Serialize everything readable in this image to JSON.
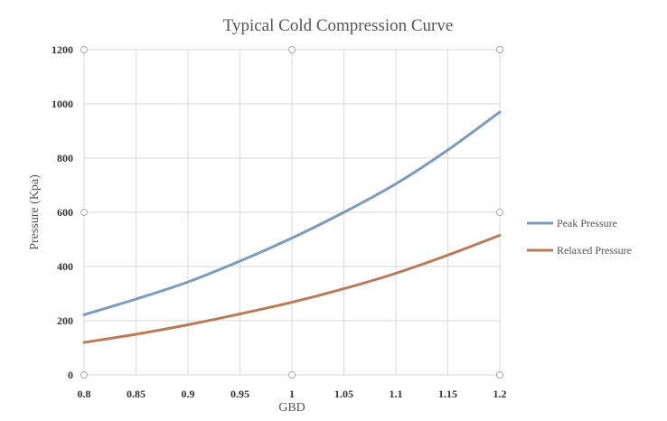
{
  "chart_data": {
    "type": "line",
    "title": "Typical Cold Compression Curve",
    "xlabel": "GBD",
    "ylabel": "Pressure (Kpa)",
    "xlim": [
      0.8,
      1.2
    ],
    "ylim": [
      0,
      1200
    ],
    "x_ticks": [
      "0.8",
      "0.85",
      "0.9",
      "0.95",
      "1",
      "1.05",
      "1.1",
      "1.15",
      "1.2"
    ],
    "y_ticks": [
      "0",
      "200",
      "400",
      "600",
      "800",
      "1000",
      "1200"
    ],
    "grid": true,
    "legend_position": "right",
    "x": [
      0.8,
      0.85,
      0.9,
      0.95,
      1.0,
      1.05,
      1.1,
      1.15,
      1.2
    ],
    "series": [
      {
        "name": "Peak Pressure",
        "color": "#7c9bbd",
        "values": [
          222,
          280,
          343,
          420,
          505,
          600,
          705,
          830,
          970
        ]
      },
      {
        "name": "Relaxed Pressure",
        "color": "#b97a58",
        "values": [
          120,
          150,
          185,
          225,
          268,
          318,
          375,
          442,
          515
        ]
      }
    ]
  }
}
